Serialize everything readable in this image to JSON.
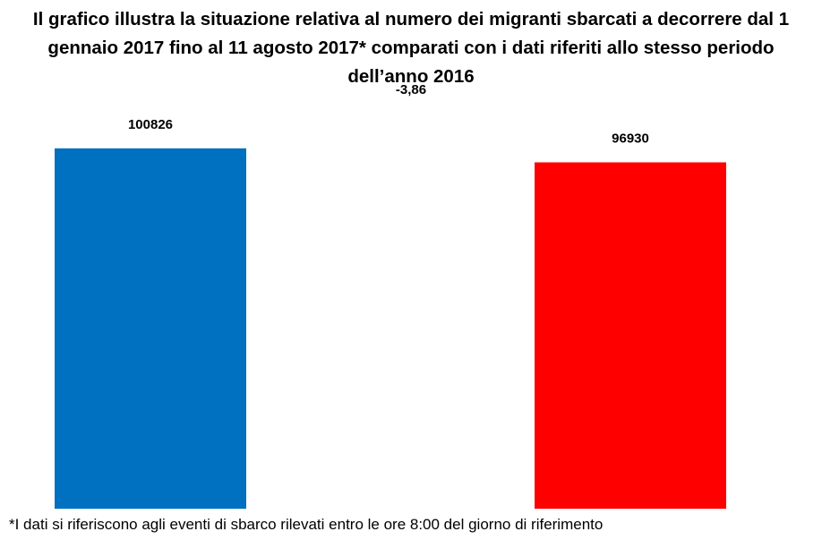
{
  "chart_data": {
    "type": "bar",
    "title_lines": [
      "Il grafico illustra la situazione relativa al numero dei migranti sbarcati a decorrere dal 1",
      "gennaio 2017 fino al 11 agosto 2017* comparati con i dati riferiti allo stesso periodo",
      "dell’anno 2016"
    ],
    "subtitle": "-3,86",
    "categories": [
      "",
      ""
    ],
    "values": [
      100826,
      96930
    ],
    "value_labels": [
      "100826",
      "96930"
    ],
    "colors": [
      "#0070c0",
      "#ff0000"
    ],
    "ylim": [
      0,
      100826
    ],
    "grid": false,
    "legend": "none"
  },
  "footnote": "*I dati si riferiscono agli eventi di sbarco rilevati entro le ore 8:00 del giorno di riferimento"
}
